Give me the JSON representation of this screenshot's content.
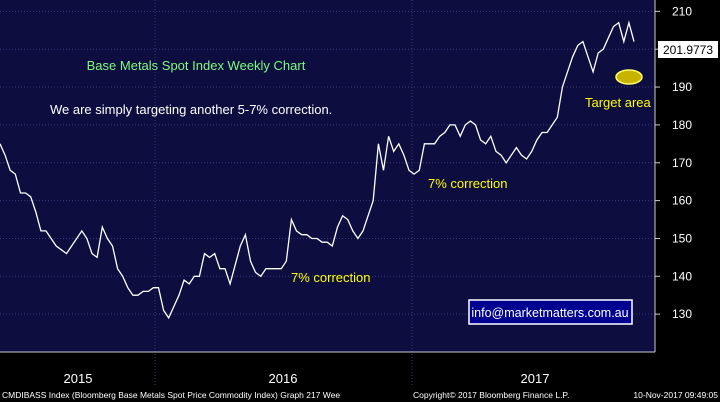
{
  "chart_data": {
    "type": "line",
    "title": "Base Metals Spot Index Weekly Chart",
    "subtitle": "We are simply targeting another 5-7% correction.",
    "ylim": [
      120,
      213
    ],
    "y_ticks": [
      130,
      140,
      150,
      160,
      170,
      180,
      190,
      200,
      210
    ],
    "grid": true,
    "x_labels": [
      "2015",
      "2016",
      "2017"
    ],
    "last_value_label": "201.9773",
    "annotations": {
      "target": "Target area",
      "correction_1": "7% correction",
      "correction_2": "7% correction",
      "watermark": "info@marketmatters.com.au"
    },
    "colors": {
      "background": "#0d0d40",
      "line": "#ffffff",
      "title": "#7cfc7c",
      "annotation": "#ffff00",
      "grid": "#3a3a7a"
    },
    "series": [
      {
        "values": [
          175,
          172,
          168,
          167,
          162,
          162,
          161,
          157,
          152,
          152,
          150,
          148,
          147,
          146,
          148,
          150,
          152,
          150,
          146,
          145,
          153,
          150,
          148,
          142,
          140,
          137,
          135,
          135,
          136,
          136,
          137,
          137,
          131,
          129,
          132,
          135,
          139,
          138,
          140,
          140,
          146,
          145,
          146,
          142,
          142,
          138,
          143,
          148,
          151,
          144,
          141,
          140,
          142,
          142,
          142,
          142,
          144,
          155,
          152,
          151,
          151,
          150,
          150,
          149,
          149,
          148,
          153,
          156,
          155,
          152,
          150,
          152,
          156,
          160,
          175,
          168,
          177,
          173,
          175,
          172,
          168,
          167,
          168,
          175,
          175,
          175,
          177,
          178,
          180,
          180,
          177,
          180,
          181,
          180,
          176,
          175,
          177,
          173,
          172,
          170,
          172,
          174,
          172,
          171,
          173,
          176,
          178,
          178,
          180,
          182,
          190,
          194,
          198,
          201,
          202,
          198,
          194,
          199,
          200,
          203,
          206,
          207,
          202,
          207,
          202
        ]
      }
    ]
  },
  "footer": {
    "left": "CMDIBASS Index (Bloomberg Base Metals Spot Price Commodity Index) Graph 217  Wee",
    "copyright": "Copyright© 2017 Bloomberg Finance L.P.",
    "timestamp": "10-Nov-2017 09:49:05"
  }
}
